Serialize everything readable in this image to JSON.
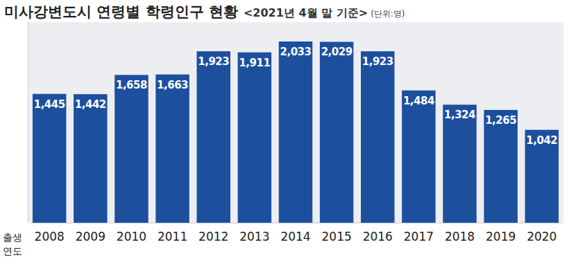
{
  "chart_data": {
    "type": "bar",
    "title": "미사강변도시 연령별 학령인구 현황",
    "subtitle": "<2021년 4월 말 기준>",
    "y_label": "(단위:명)",
    "x_label": "출생 연도",
    "categories": [
      "2008",
      "2009",
      "2010",
      "2011",
      "2012",
      "2013",
      "2014",
      "2015",
      "2016",
      "2017",
      "2018",
      "2019",
      "2020"
    ],
    "values": [
      1445,
      1442,
      1658,
      1663,
      1923,
      1911,
      2033,
      2029,
      1923,
      1484,
      1324,
      1265,
      1042
    ],
    "value_labels": [
      "1,445",
      "1,442",
      "1,658",
      "1,663",
      "1,923",
      "1,911",
      "2,033",
      "2,029",
      "1,923",
      "1,484",
      "1,324",
      "1,265",
      "1,042"
    ],
    "color": "#1d4f9f",
    "ylim": [
      0,
      2250
    ],
    "data_labels": true,
    "tick_labels": "x",
    "grid": false
  }
}
